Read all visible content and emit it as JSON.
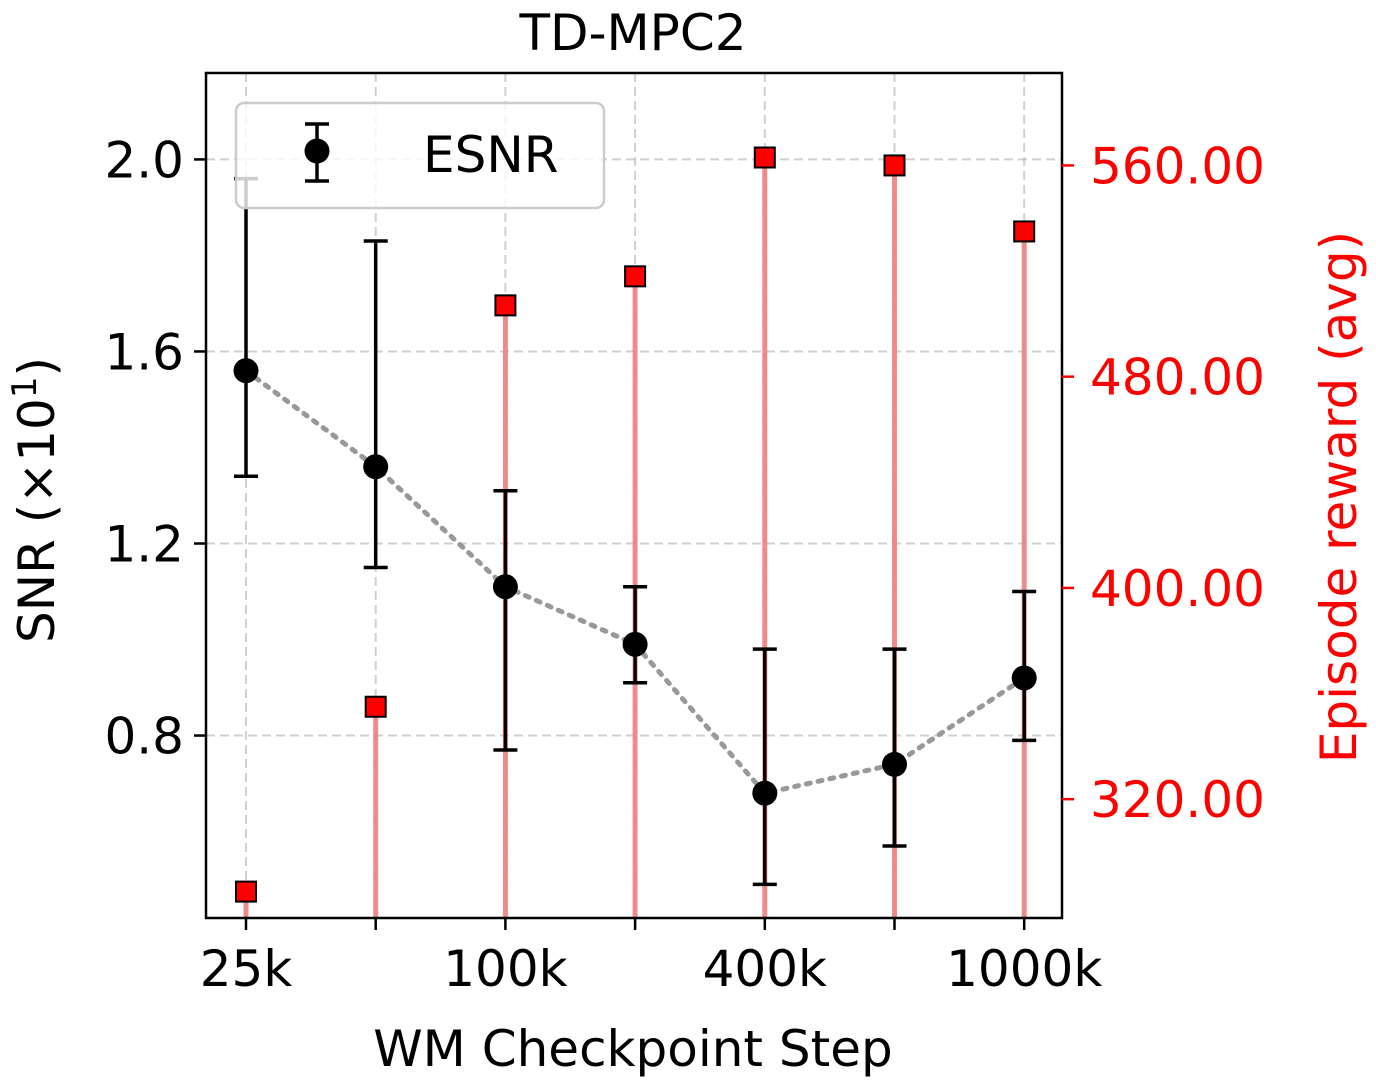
{
  "chart_data": {
    "type": "scatter",
    "title": "TD-MPC2",
    "xlabel": "WM Checkpoint Step",
    "ylabel_left": "SNR (×10",
    "ylabel_left_exp": "1",
    "ylabel_left_close": ")",
    "ylabel_right": "Episode reward (avg)",
    "x_positions": [
      0,
      1,
      2,
      3,
      4,
      5,
      6
    ],
    "x_tick_labels": [
      "25k",
      "",
      "100k",
      "",
      "400k",
      "",
      "1000k"
    ],
    "y_left_ticks": [
      0.8,
      1.2,
      1.6,
      2.0
    ],
    "y_left_tick_labels": [
      "0.8",
      "1.2",
      "1.6",
      "2.0"
    ],
    "y_left_lim": [
      0.42,
      2.18
    ],
    "y_right_ticks": [
      320,
      400,
      480,
      560
    ],
    "y_right_tick_labels": [
      "320.00",
      "400.00",
      "480.00",
      "560.00"
    ],
    "y_right_lim": [
      275,
      595
    ],
    "grid": true,
    "legend": {
      "placement": "top-left",
      "entries": [
        "ESNR"
      ]
    },
    "series": [
      {
        "name": "ESNR",
        "axis": "left",
        "values": [
          1.56,
          1.36,
          1.11,
          0.99,
          0.68,
          0.74,
          0.92
        ],
        "err_low": [
          1.34,
          1.15,
          0.77,
          0.91,
          0.49,
          0.57,
          0.79
        ],
        "err_high": [
          1.96,
          1.83,
          1.31,
          1.11,
          0.98,
          0.98,
          1.1
        ],
        "color": "#000000",
        "connector_color": "#999999"
      },
      {
        "axis": "right",
        "values": [
          285,
          355,
          507,
          518,
          563,
          560,
          535
        ],
        "color": "#ff0000",
        "stem_color": "#f08080"
      }
    ]
  }
}
